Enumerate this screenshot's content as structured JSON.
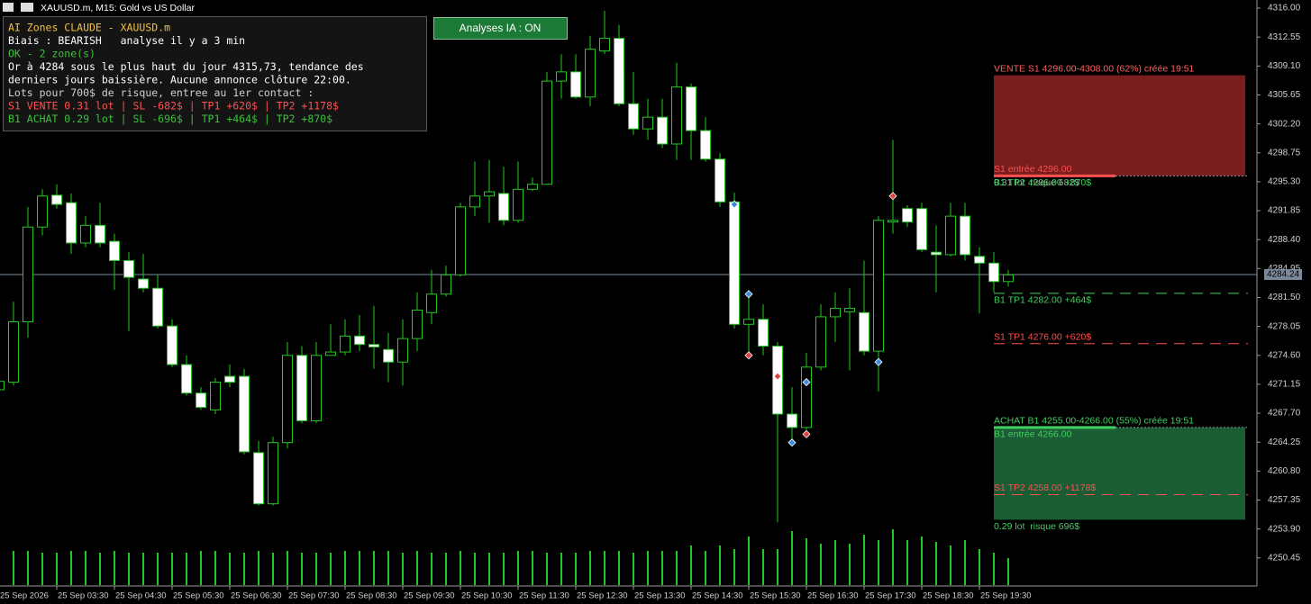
{
  "window": {
    "title": "XAUUSD.m, M15:  Gold vs US Dollar"
  },
  "panel": {
    "lines": [
      {
        "text": "AI Zones CLAUDE - XAUUSD.m",
        "color": "#f0c040"
      },
      {
        "text": "Biais : BEARISH   analyse il y a 3 min",
        "color": "#ffffff"
      },
      {
        "text": "OK - 2 zone(s)",
        "color": "#3ec03e"
      },
      {
        "text": "Or à 4284 sous le plus haut du jour 4315,73, tendance des",
        "color": "#ffffff"
      },
      {
        "text": "derniers jours baissière. Aucune annonce clôture 22:00.",
        "color": "#ffffff"
      },
      {
        "text": "Lots pour 700$ de risque, entree au 1er contact :",
        "color": "#d0d0d0"
      },
      {
        "text": "S1 VENTE 0.31 lot | SL -682$ | TP1 +620$ | TP2 +1178$",
        "color": "#ff5050"
      },
      {
        "text": "B1 ACHAT 0.29 lot | SL -696$ | TP1 +464$ | TP2 +870$",
        "color": "#3ec03e"
      }
    ]
  },
  "button": {
    "label": "Analyses IA : ON"
  },
  "chart_data": {
    "type": "candlestick",
    "categories": [
      "25 Sep 2026",
      null,
      null,
      null,
      "25 Sep 03:30",
      null,
      null,
      null,
      "25 Sep 04:30",
      null,
      null,
      null,
      "25 Sep 05:30",
      null,
      null,
      null,
      "25 Sep 06:30",
      null,
      null,
      null,
      "25 Sep 07:30",
      null,
      null,
      null,
      "25 Sep 08:30",
      null,
      null,
      null,
      "25 Sep 09:30",
      null,
      null,
      null,
      "25 Sep 10:30",
      null,
      null,
      null,
      "25 Sep 11:30",
      null,
      null,
      null,
      "25 Sep 12:30",
      null,
      null,
      null,
      "25 Sep 13:30",
      null,
      null,
      null,
      "25 Sep 14:30",
      null,
      null,
      null,
      "25 Sep 15:30",
      null,
      null,
      null,
      "25 Sep 16:30",
      null,
      null,
      null,
      "25 Sep 17:30",
      null,
      null,
      null,
      "25 Sep 18:30",
      null,
      null,
      null,
      "25 Sep 19:30",
      null,
      null
    ],
    "open": [
      4270.5,
      4271.4,
      4278.6,
      4289.9,
      4293.7,
      4292.8,
      4288.0,
      4290.1,
      4288.2,
      4285.9,
      4283.7,
      4282.6,
      4278.1,
      4273.5,
      4270.1,
      4268.1,
      4272.1,
      4272.1,
      4263.0,
      4256.9,
      4264.2,
      4274.6,
      4266.8,
      4274.6,
      4275.0,
      4276.9,
      4275.9,
      4275.3,
      4273.8,
      4276.6,
      4279.7,
      4281.9,
      4284.2,
      4292.3,
      4293.6,
      4293.9,
      4290.7,
      4294.4,
      4295.0,
      4307.3,
      4308.4,
      4305.4,
      4310.9,
      4312.4,
      4304.6,
      4301.6,
      4303.0,
      4299.8,
      4306.6,
      4301.4,
      4298.0,
      4292.9,
      4278.3,
      4278.9,
      4275.7,
      4267.6,
      4266.0,
      4273.2,
      4279.2,
      4279.8,
      4279.7,
      4275.1,
      4290.5,
      4292.1,
      4292.1,
      4286.9,
      4286.6,
      4291.2,
      4286.4,
      4285.6,
      4283.4
    ],
    "high": [
      4272.4,
      4281.0,
      4292.3,
      4294.4,
      4295.0,
      4293.9,
      4291.2,
      4292.8,
      4289.1,
      4286.9,
      4286.7,
      4284.2,
      4278.9,
      4274.6,
      4270.8,
      4271.9,
      4273.5,
      4273.0,
      4264.4,
      4264.9,
      4276.2,
      4275.7,
      4276.2,
      4278.3,
      4278.9,
      4279.4,
      4280.5,
      4277.3,
      4278.9,
      4282.1,
      4284.8,
      4285.3,
      4292.8,
      4297.7,
      4297.9,
      4297.1,
      4297.7,
      4295.8,
      4308.4,
      4310.5,
      4310.5,
      4312.7,
      4315.7,
      4314.0,
      4308.4,
      4305.2,
      4305.2,
      4309.5,
      4307.0,
      4303.0,
      4298.7,
      4294.0,
      4282.1,
      4280.7,
      4276.2,
      4270.8,
      4274.9,
      4280.7,
      4282.1,
      4282.6,
      4285.9,
      4291.2,
      4300.3,
      4292.5,
      4292.8,
      4290.1,
      4292.8,
      4292.8,
      4287.5,
      4286.9,
      4284.8
    ],
    "low": [
      4270.3,
      4271.0,
      4276.7,
      4288.9,
      4292.1,
      4286.7,
      4287.5,
      4287.5,
      4282.4,
      4277.5,
      4282.1,
      4277.8,
      4273.2,
      4269.8,
      4268.1,
      4267.6,
      4270.8,
      4262.8,
      4256.7,
      4256.7,
      4263.5,
      4266.5,
      4266.5,
      4274.6,
      4274.6,
      4275.1,
      4273.0,
      4271.4,
      4271.0,
      4275.1,
      4278.3,
      4281.6,
      4284.0,
      4291.2,
      4290.4,
      4290.1,
      4290.4,
      4294.2,
      4295.0,
      4305.2,
      4305.2,
      4304.3,
      4310.5,
      4304.3,
      4300.9,
      4300.3,
      4299.3,
      4297.9,
      4297.9,
      4297.7,
      4292.3,
      4277.8,
      4274.6,
      4274.6,
      4254.7,
      4263.9,
      4265.7,
      4272.8,
      4276.2,
      4272.8,
      4274.6,
      4270.3,
      4289.1,
      4289.9,
      4286.9,
      4282.1,
      4286.4,
      4285.9,
      4279.6,
      4282.1,
      4282.8
    ],
    "close": [
      4271.5,
      4278.6,
      4289.9,
      4293.6,
      4292.6,
      4288.0,
      4290.1,
      4288.0,
      4285.9,
      4283.9,
      4282.6,
      4278.1,
      4273.5,
      4270.1,
      4268.4,
      4271.4,
      4271.4,
      4263.1,
      4256.9,
      4264.2,
      4274.6,
      4266.8,
      4274.6,
      4275.0,
      4276.9,
      4275.9,
      4275.6,
      4273.8,
      4276.6,
      4280.0,
      4281.9,
      4284.2,
      4292.3,
      4293.6,
      4294.1,
      4290.7,
      4294.4,
      4295.0,
      4307.3,
      4308.4,
      4305.4,
      4311.1,
      4312.4,
      4304.6,
      4301.6,
      4303.0,
      4299.8,
      4306.6,
      4301.4,
      4298.0,
      4292.9,
      4278.3,
      4278.9,
      4275.7,
      4267.6,
      4266.0,
      4273.2,
      4279.2,
      4280.2,
      4280.2,
      4275.1,
      4290.7,
      4290.7,
      4290.5,
      4287.2,
      4286.6,
      4291.2,
      4286.6,
      4285.6,
      4283.4,
      4284.2
    ],
    "volumes": [
      36,
      38,
      38,
      36,
      36,
      38,
      38,
      36,
      38,
      36,
      36,
      36,
      36,
      36,
      38,
      38,
      36,
      36,
      38,
      36,
      38,
      36,
      36,
      36,
      38,
      38,
      38,
      38,
      36,
      38,
      36,
      36,
      38,
      36,
      36,
      36,
      38,
      38,
      36,
      36,
      36,
      38,
      38,
      38,
      36,
      38,
      38,
      38,
      44,
      38,
      44,
      40,
      54,
      40,
      40,
      60,
      52,
      46,
      50,
      46,
      56,
      50,
      62,
      50,
      54,
      48,
      44,
      50,
      40,
      36,
      30
    ],
    "up_color": "#22c722",
    "down_color": "#ffffff",
    "ylim": [
      4247.1,
      4316.97
    ],
    "yticks": [
      {
        "value": 4316,
        "label": "4316.00"
      },
      {
        "value": 4312.55,
        "label": "4312.55"
      },
      {
        "value": 4309.1,
        "label": "4309.10"
      },
      {
        "value": 4305.65,
        "label": "4305.65"
      },
      {
        "value": 4302.2,
        "label": "4302.20"
      },
      {
        "value": 4298.75,
        "label": "4298.75"
      },
      {
        "value": 4295.3,
        "label": "4295.30"
      },
      {
        "value": 4291.85,
        "label": "4291.85"
      },
      {
        "value": 4288.4,
        "label": "4288.40"
      },
      {
        "value": 4284.95,
        "label": "4284.95"
      },
      {
        "value": 4281.5,
        "label": "4281.50"
      },
      {
        "value": 4278.05,
        "label": "4278.05"
      },
      {
        "value": 4274.6,
        "label": "4274.60"
      },
      {
        "value": 4271.15,
        "label": "4271.15"
      },
      {
        "value": 4267.7,
        "label": "4267.70"
      },
      {
        "value": 4264.25,
        "label": "4264.25"
      },
      {
        "value": 4260.8,
        "label": "4260.80"
      },
      {
        "value": 4257.35,
        "label": "4257.35"
      },
      {
        "value": 4253.9,
        "label": "4253.90"
      },
      {
        "value": 4250.45,
        "label": "4250.45"
      }
    ],
    "last_price": {
      "value": 4284.24,
      "label": "4284.24"
    },
    "zones": [
      {
        "label": "VENTE S1 4296.00-4308.00 (62%) créée 19:51",
        "low": 4296,
        "high": 4308,
        "color": "#7a1d1d",
        "label_color": "#ff6060",
        "start_index": 69,
        "risk_label": "0.31 lot  risque 682$",
        "risk_color": "#9aa890"
      },
      {
        "label": "ACHAT B1 4255.00-4266.00 (55%) créée 19:51",
        "low": 4255,
        "high": 4266,
        "color": "#1a5c34",
        "label_color": "#40d060",
        "start_index": 69,
        "risk_label": "0.29 lot  risque 696$",
        "risk_color": "#40d060"
      }
    ],
    "levels": [
      {
        "label": "S1 entrée 4296.00",
        "price": 4296,
        "color": "#ff5050",
        "style": "solid",
        "label_pos": "above"
      },
      {
        "label": "B1 TP2 4296.00 +870$",
        "price": 4296,
        "color": "#40d060",
        "style": "none",
        "label_pos": "below"
      },
      {
        "label": "B1 TP1 4282.00 +464$",
        "price": 4282,
        "color": "#40d060",
        "style": "dashed",
        "label_pos": "below"
      },
      {
        "label": "S1 TP1 4276.00 +620$",
        "price": 4276,
        "color": "#ff5050",
        "style": "dashed",
        "label_pos": "above"
      },
      {
        "label": "B1 entrée 4266.00",
        "price": 4266,
        "color": "#40d060",
        "style": "solid",
        "label_pos": "below"
      },
      {
        "label": "S1 TP2 4258.00 +1178$",
        "price": 4258,
        "color": "#ff5050",
        "style": "dashed",
        "label_pos": "above"
      }
    ],
    "markers": [
      {
        "index": 51,
        "price": 4292.6,
        "color": "#3a8ee0"
      },
      {
        "index": 52,
        "price": 4281.9,
        "color": "#3a8ee0"
      },
      {
        "index": 52,
        "price": 4274.6,
        "color": "#e04040"
      },
      {
        "index": 54,
        "price": 4272.1,
        "color": "#e04040"
      },
      {
        "index": 55,
        "price": 4264.2,
        "color": "#3a8ee0"
      },
      {
        "index": 56,
        "price": 4271.4,
        "color": "#3a8ee0"
      },
      {
        "index": 56,
        "price": 4265.2,
        "color": "#e04040"
      },
      {
        "index": 61,
        "price": 4273.8,
        "color": "#3a8ee0"
      },
      {
        "index": 62,
        "price": 4293.6,
        "color": "#e04040"
      }
    ]
  }
}
